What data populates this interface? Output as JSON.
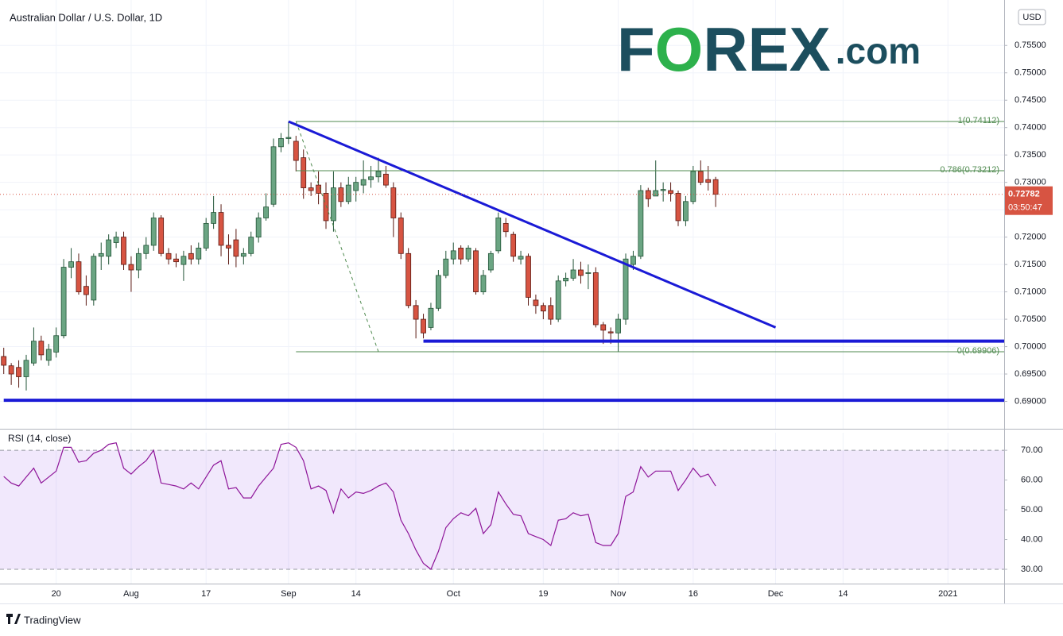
{
  "chart_data": [
    {
      "type": "candlestick",
      "title": "Australian Dollar / U.S. Dollar, 1D",
      "currency": "USD",
      "logo": [
        "F",
        "O",
        "REX",
        ".com"
      ],
      "categories": [
        null,
        null,
        null,
        null,
        null,
        null,
        null,
        "20",
        null,
        null,
        null,
        null,
        null,
        null,
        null,
        null,
        null,
        "Aug",
        null,
        null,
        null,
        null,
        null,
        null,
        null,
        null,
        null,
        "17",
        null,
        null,
        null,
        null,
        null,
        null,
        null,
        null,
        null,
        null,
        "Sep",
        null,
        null,
        null,
        null,
        null,
        null,
        null,
        null,
        "14",
        null,
        null,
        null,
        null,
        null,
        null,
        null,
        null,
        null,
        null,
        null,
        null,
        "Oct",
        null,
        null,
        null,
        null,
        null,
        null,
        null,
        null,
        null,
        null,
        null,
        "19",
        null,
        null,
        null,
        null,
        null,
        null,
        null,
        null,
        null,
        "Nov",
        null,
        null,
        null,
        null,
        null,
        null,
        null,
        null,
        null,
        "16",
        null,
        null,
        null,
        null,
        null,
        null,
        null,
        null,
        null,
        null,
        "Dec",
        null,
        null,
        null,
        null,
        null,
        null,
        null,
        null,
        "14",
        null,
        null,
        null,
        null,
        null,
        null,
        null,
        null,
        null,
        null,
        null,
        null,
        null,
        "2021",
        null,
        null,
        null,
        null,
        null,
        null,
        null
      ],
      "open": [
        0.6982,
        0.6965,
        0.6962,
        0.6945,
        0.697,
        0.701,
        0.6975,
        0.699,
        0.702,
        0.7145,
        0.7155,
        0.711,
        0.7085,
        0.7165,
        0.7165,
        0.719,
        0.72,
        0.715,
        0.714,
        0.717,
        0.7185,
        0.7235,
        0.717,
        0.716,
        0.715,
        0.717,
        0.716,
        0.718,
        0.7225,
        0.7245,
        0.7185,
        0.7195,
        0.7165,
        0.717,
        0.72,
        0.7235,
        0.726,
        0.7365,
        0.738,
        0.7375,
        0.7345,
        0.729,
        0.7295,
        0.728,
        0.723,
        0.729,
        0.7265,
        0.7285,
        0.7295,
        0.7305,
        0.731,
        0.7315,
        0.729,
        0.7235,
        0.717,
        0.7075,
        0.705,
        0.7035,
        0.707,
        0.713,
        0.716,
        0.718,
        0.716,
        0.7175,
        0.71,
        0.714,
        0.7175,
        0.7225,
        0.7205,
        0.716,
        0.7165,
        0.7085,
        0.7075,
        0.7075,
        0.705,
        0.712,
        0.7125,
        0.714,
        0.7135,
        0.7135,
        0.704,
        0.7027,
        0.7025,
        0.705,
        0.715,
        0.7165,
        0.7285,
        0.7275,
        0.7285,
        0.7285,
        0.728,
        0.723,
        0.7265,
        0.732,
        0.7305,
        0.7305,
        null,
        null,
        null,
        null,
        null,
        null,
        null,
        null,
        null,
        null,
        null,
        null,
        null,
        null,
        null,
        null,
        null,
        null,
        null,
        null,
        null,
        null,
        null,
        null,
        null,
        null,
        null,
        null,
        null,
        null,
        null,
        null,
        null,
        null,
        null,
        null,
        null,
        null
      ],
      "high": [
        0.6998,
        0.697,
        0.6975,
        0.6985,
        0.7035,
        0.702,
        0.7005,
        0.7035,
        0.716,
        0.718,
        0.717,
        0.713,
        0.717,
        0.719,
        0.7205,
        0.721,
        0.721,
        0.7165,
        0.718,
        0.72,
        0.7245,
        0.724,
        0.718,
        0.717,
        0.7175,
        0.7185,
        0.719,
        0.7235,
        0.7275,
        0.726,
        0.7205,
        0.7215,
        0.718,
        0.721,
        0.7245,
        0.728,
        0.738,
        0.739,
        0.7411,
        0.7385,
        0.736,
        0.73,
        0.732,
        0.73,
        0.732,
        0.73,
        0.731,
        0.731,
        0.734,
        0.733,
        0.7345,
        0.733,
        0.73,
        0.7245,
        0.718,
        0.7085,
        0.706,
        0.708,
        0.714,
        0.7175,
        0.719,
        0.7185,
        0.7185,
        0.718,
        0.714,
        0.7175,
        0.7245,
        0.7235,
        0.721,
        0.7175,
        0.717,
        0.7095,
        0.708,
        0.709,
        0.713,
        0.7135,
        0.716,
        0.7155,
        0.715,
        0.7145,
        0.7045,
        0.7035,
        0.706,
        0.717,
        0.7175,
        0.7295,
        0.729,
        0.734,
        0.73,
        0.73,
        0.7285,
        0.7275,
        0.733,
        0.734,
        0.733,
        0.731,
        null,
        null,
        null,
        null,
        null,
        null,
        null,
        null,
        null,
        null,
        null,
        null,
        null,
        null,
        null,
        null,
        null,
        null,
        null,
        null,
        null,
        null,
        null,
        null,
        null,
        null,
        null,
        null,
        null,
        null,
        null,
        null,
        null,
        null,
        null,
        null,
        null,
        null
      ],
      "low": [
        0.695,
        0.693,
        0.6925,
        0.692,
        0.6965,
        0.6975,
        0.6965,
        0.698,
        0.7015,
        0.7125,
        0.7095,
        0.7075,
        0.7075,
        0.714,
        0.715,
        0.718,
        0.714,
        0.71,
        0.7125,
        0.716,
        0.7175,
        0.7165,
        0.715,
        0.7145,
        0.712,
        0.715,
        0.715,
        0.7175,
        0.7215,
        0.7165,
        0.715,
        0.7145,
        0.715,
        0.7165,
        0.719,
        0.723,
        0.7255,
        0.7355,
        0.737,
        0.732,
        0.727,
        0.7275,
        0.726,
        0.7215,
        0.721,
        0.7255,
        0.726,
        0.7265,
        0.728,
        0.729,
        0.73,
        0.729,
        0.72,
        0.716,
        0.707,
        0.7015,
        0.7015,
        0.703,
        0.7065,
        0.7125,
        0.715,
        0.715,
        0.7155,
        0.7095,
        0.7095,
        0.7135,
        0.717,
        0.72,
        0.7155,
        0.715,
        0.7075,
        0.706,
        0.705,
        0.704,
        0.7045,
        0.711,
        0.712,
        0.7115,
        0.7105,
        0.7035,
        0.7005,
        0.7005,
        0.6991,
        0.704,
        0.714,
        0.716,
        0.7255,
        0.7275,
        0.7265,
        0.7265,
        0.722,
        0.722,
        0.726,
        0.7295,
        0.7285,
        0.7255,
        null,
        null,
        null,
        null,
        null,
        null,
        null,
        null,
        null,
        null,
        null,
        null,
        null,
        null,
        null,
        null,
        null,
        null,
        null,
        null,
        null,
        null,
        null,
        null,
        null,
        null,
        null,
        null,
        null,
        null,
        null,
        null,
        null,
        null,
        null,
        null,
        null,
        null
      ],
      "close": [
        0.6966,
        0.695,
        0.6945,
        0.6975,
        0.701,
        0.6985,
        0.6995,
        0.702,
        0.7145,
        0.7155,
        0.71,
        0.7095,
        0.7165,
        0.717,
        0.7195,
        0.72,
        0.715,
        0.714,
        0.717,
        0.7185,
        0.7235,
        0.717,
        0.716,
        0.7155,
        0.7165,
        0.716,
        0.718,
        0.7225,
        0.7245,
        0.7185,
        0.718,
        0.7165,
        0.717,
        0.72,
        0.7235,
        0.7255,
        0.7365,
        0.738,
        0.7382,
        0.734,
        0.729,
        0.7285,
        0.728,
        0.723,
        0.729,
        0.7265,
        0.7295,
        0.73,
        0.7305,
        0.731,
        0.732,
        0.7295,
        0.7235,
        0.717,
        0.7075,
        0.705,
        0.7025,
        0.707,
        0.713,
        0.716,
        0.7175,
        0.716,
        0.718,
        0.71,
        0.713,
        0.717,
        0.7235,
        0.721,
        0.7165,
        0.7165,
        0.709,
        0.7075,
        0.7065,
        0.705,
        0.712,
        0.7125,
        0.714,
        0.713,
        0.7135,
        0.704,
        0.703,
        0.7025,
        0.705,
        0.716,
        0.7165,
        0.7285,
        0.727,
        0.7285,
        0.7287,
        0.728,
        0.723,
        0.7265,
        0.732,
        0.73,
        0.73,
        0.72782,
        null,
        null,
        null,
        null,
        null,
        null,
        null,
        null,
        null,
        null,
        null,
        null,
        null,
        null,
        null,
        null,
        null,
        null,
        null,
        null,
        null,
        null,
        null,
        null,
        null,
        null,
        null,
        null,
        null,
        null,
        null,
        null,
        null,
        null,
        null,
        null,
        null,
        null
      ],
      "up_color": "#6ba583",
      "down_color": "#d75442",
      "ylim": [
        0.685,
        0.7633
      ],
      "yticks": [
        {
          "value": 0.69,
          "label": "0.69000"
        },
        {
          "value": 0.695,
          "label": "0.69500"
        },
        {
          "value": 0.7,
          "label": "0.70000"
        },
        {
          "value": 0.705,
          "label": "0.70500"
        },
        {
          "value": 0.71,
          "label": "0.71000"
        },
        {
          "value": 0.715,
          "label": "0.71500"
        },
        {
          "value": 0.72,
          "label": "0.72000"
        },
        {
          "value": 0.725,
          "label": "0.72500"
        },
        {
          "value": 0.73,
          "label": "0.73000"
        },
        {
          "value": 0.735,
          "label": "0.73500"
        },
        {
          "value": 0.74,
          "label": "0.74000"
        },
        {
          "value": 0.745,
          "label": "0.74500"
        },
        {
          "value": 0.75,
          "label": "0.75000"
        },
        {
          "value": 0.755,
          "label": "0.75500"
        }
      ],
      "grid": true,
      "last_price": 0.72782,
      "countdown": "03:50:47",
      "fib_start": 39,
      "fib": [
        {
          "value": 0.74112,
          "label": "1(0.74112)"
        },
        {
          "value": 0.73212,
          "label": "0.786(0.73212)"
        },
        {
          "value": 0.69906,
          "label": "0(0.69906)"
        }
      ],
      "fib_color": "#4f8a4f",
      "drawings": [
        {
          "color": "#1a1ad6",
          "width": 3,
          "dash": false,
          "from": [
            38,
            0.74112
          ],
          "to": [
            103,
            0.7035
          ]
        },
        {
          "color": "#1a1ad6",
          "width": 4,
          "dash": false,
          "from": [
            56,
            0.701
          ],
          "to": [
            134,
            0.701
          ]
        },
        {
          "color": "#1a1ad6",
          "width": 4,
          "dash": false,
          "from": [
            0,
            0.6902
          ],
          "to": [
            134,
            0.6902
          ]
        },
        {
          "color": "#4f8a4f",
          "width": 1,
          "dash": true,
          "from": [
            39,
            0.74112
          ],
          "to": [
            50,
            0.69906
          ]
        }
      ]
    },
    {
      "type": "line",
      "title": "RSI (14, close)",
      "values": [
        61.2,
        59,
        58,
        61,
        64,
        59,
        61,
        63,
        71,
        71,
        66,
        66.5,
        69,
        70,
        72,
        72.5,
        64,
        62,
        64.5,
        66.5,
        70,
        59,
        58.5,
        58,
        57,
        59,
        57,
        61,
        65,
        66.5,
        57,
        57.5,
        54,
        54,
        58,
        61,
        64,
        72,
        72.5,
        71,
        66.5,
        57,
        58,
        56.5,
        49,
        57,
        54,
        56,
        55.5,
        56.5,
        58,
        59,
        56,
        46.5,
        42,
        36.5,
        32,
        30,
        36,
        44,
        47,
        49,
        48,
        50.5,
        42,
        45,
        56,
        52,
        48.5,
        48,
        42,
        41,
        40,
        38,
        46.5,
        47,
        49,
        48,
        48.5,
        39,
        38,
        38,
        42,
        54.5,
        56,
        64.5,
        61,
        63,
        63,
        63,
        56.5,
        60,
        64,
        61,
        62,
        58,
        null,
        null,
        null,
        null,
        null,
        null,
        null,
        null,
        null,
        null,
        null,
        null,
        null,
        null,
        null,
        null,
        null,
        null,
        null,
        null,
        null,
        null,
        null,
        null,
        null,
        null,
        null,
        null,
        null,
        null,
        null,
        null,
        null,
        null,
        null,
        null,
        null,
        null
      ],
      "color": "#8e1599",
      "band": [
        30,
        70
      ],
      "ylim": [
        25.2,
        75.9
      ],
      "yticks": [
        {
          "value": 30,
          "label": "30.00"
        },
        {
          "value": 40,
          "label": "40.00"
        },
        {
          "value": 50,
          "label": "50.00"
        },
        {
          "value": 60,
          "label": "60.00"
        },
        {
          "value": 70,
          "label": "70.00"
        }
      ]
    }
  ],
  "footer": {
    "brand": "TradingView"
  }
}
